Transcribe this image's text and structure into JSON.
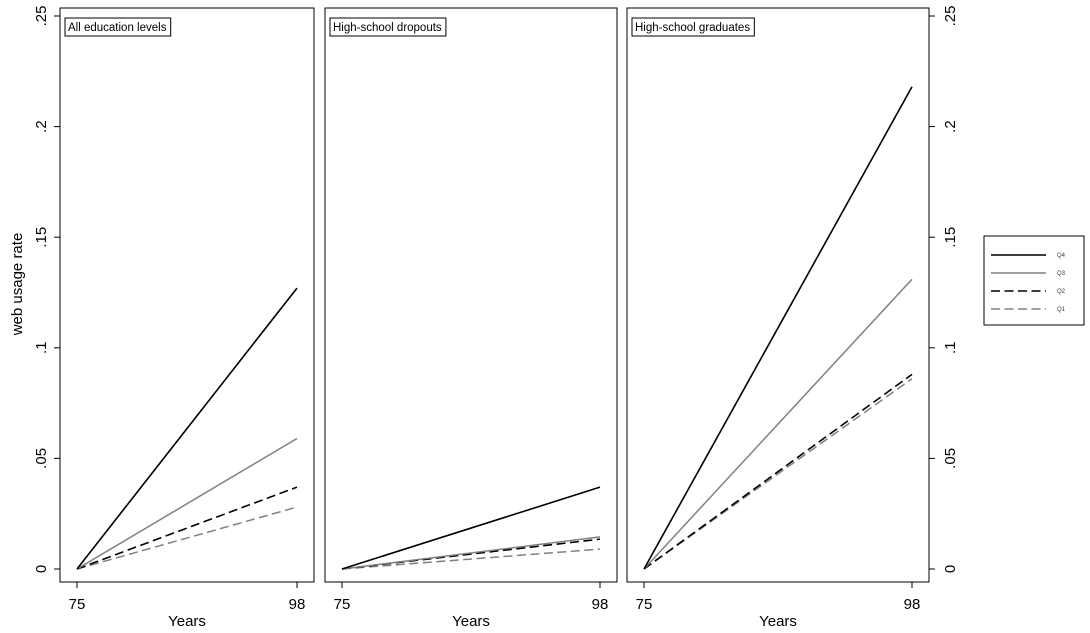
{
  "chart_data": {
    "type": "line",
    "ylabel": "web usage rate",
    "ylim": [
      0,
      0.25
    ],
    "yticks": [
      0,
      0.05,
      0.1,
      0.15,
      0.2,
      0.25
    ],
    "ytick_labels": [
      "0",
      ".05",
      ".1",
      ".15",
      ".2",
      ".25"
    ],
    "x": [
      75,
      98
    ],
    "xtick_labels": [
      "75",
      "98"
    ],
    "legend_position": "right",
    "legend": [
      {
        "name": "Q4",
        "color": "#000000",
        "dash": "solid"
      },
      {
        "name": "Q3",
        "color": "#808080",
        "dash": "solid"
      },
      {
        "name": "Q2",
        "color": "#000000",
        "dash": "long-dash"
      },
      {
        "name": "Q1",
        "color": "#808080",
        "dash": "long-dash"
      }
    ],
    "panels": [
      {
        "title": "All education levels",
        "xlabel": "Years",
        "series": [
          {
            "name": "Q4",
            "values": [
              0,
              0.127
            ]
          },
          {
            "name": "Q3",
            "values": [
              0,
              0.059
            ]
          },
          {
            "name": "Q2",
            "values": [
              0,
              0.037
            ]
          },
          {
            "name": "Q1",
            "values": [
              0,
              0.028
            ]
          }
        ]
      },
      {
        "title": "High-school dropouts",
        "xlabel": "Years",
        "series": [
          {
            "name": "Q4",
            "values": [
              0,
              0.037
            ]
          },
          {
            "name": "Q3",
            "values": [
              0,
              0.0145
            ]
          },
          {
            "name": "Q2",
            "values": [
              0,
              0.0135
            ]
          },
          {
            "name": "Q1",
            "values": [
              0,
              0.009
            ]
          }
        ]
      },
      {
        "title": "High-school graduates",
        "xlabel": "Years",
        "series": [
          {
            "name": "Q4",
            "values": [
              0,
              0.218
            ]
          },
          {
            "name": "Q3",
            "values": [
              0,
              0.131
            ]
          },
          {
            "name": "Q2",
            "values": [
              0,
              0.088
            ]
          },
          {
            "name": "Q1",
            "values": [
              0,
              0.086
            ]
          }
        ]
      }
    ]
  }
}
